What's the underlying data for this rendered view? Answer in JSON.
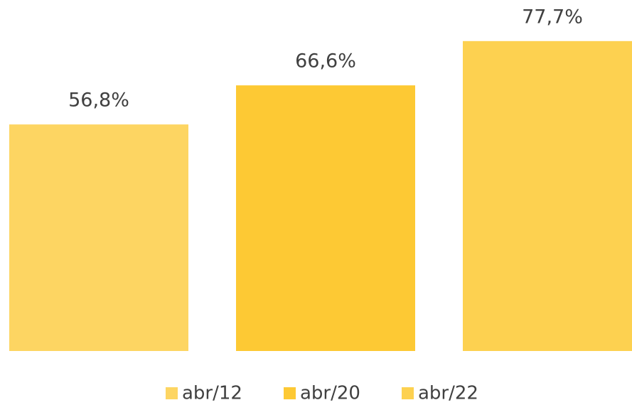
{
  "chart_data": {
    "type": "bar",
    "series": [
      {
        "name": "abr/12",
        "color": "#fdd562",
        "values": [
          56.8
        ],
        "value_labels": [
          "56,8%"
        ]
      },
      {
        "name": "abr/20",
        "color": "#fdc934",
        "values": [
          66.6
        ],
        "value_labels": [
          "66,6%"
        ]
      },
      {
        "name": "abr/22",
        "color": "#fdd150",
        "values": [
          77.7
        ],
        "value_labels": [
          "77,7%"
        ]
      }
    ],
    "ylim": [
      0,
      88
    ],
    "legend": "bottom"
  }
}
